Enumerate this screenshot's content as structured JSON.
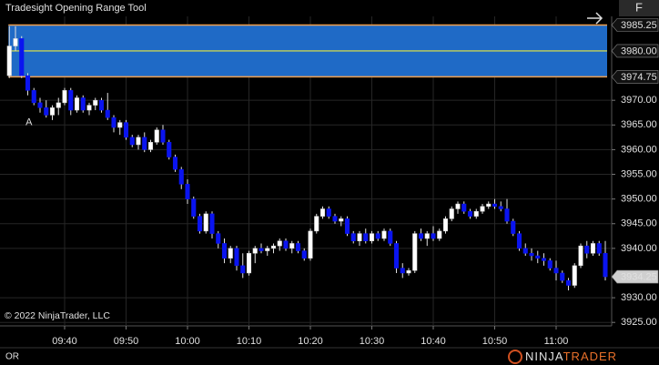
{
  "chart_data": {
    "type": "candlestick",
    "title": "Tradesight Opening Range Tool",
    "copyright": "© 2022 NinjaTrader, LLC",
    "annotation": "A",
    "panel_label": "OR",
    "button_label": "F",
    "logo_left": "NINJA",
    "logo_right": "TRADER",
    "up_color": "#ffffff",
    "down_color": "#0a14f0",
    "x": [
      "09:31",
      "09:32",
      "09:33",
      "09:34",
      "09:35",
      "09:36",
      "09:37",
      "09:38",
      "09:39",
      "09:40",
      "09:41",
      "09:42",
      "09:43",
      "09:44",
      "09:45",
      "09:46",
      "09:47",
      "09:48",
      "09:49",
      "09:50",
      "09:51",
      "09:52",
      "09:53",
      "09:54",
      "09:55",
      "09:56",
      "09:57",
      "09:58",
      "09:59",
      "10:00",
      "10:01",
      "10:02",
      "10:03",
      "10:04",
      "10:05",
      "10:06",
      "10:07",
      "10:08",
      "10:09",
      "10:10",
      "10:11",
      "10:12",
      "10:13",
      "10:14",
      "10:15",
      "10:16",
      "10:17",
      "10:18",
      "10:19",
      "10:20",
      "10:21",
      "10:22",
      "10:23",
      "10:24",
      "10:25",
      "10:26",
      "10:27",
      "10:28",
      "10:29",
      "10:30",
      "10:31",
      "10:32",
      "10:33",
      "10:34",
      "10:35",
      "10:36",
      "10:37",
      "10:38",
      "10:39",
      "10:40",
      "10:41",
      "10:42",
      "10:43",
      "10:44",
      "10:45",
      "10:46",
      "10:47",
      "10:48",
      "10:49",
      "10:50",
      "10:51",
      "10:52",
      "10:53",
      "10:54",
      "10:55",
      "10:56",
      "10:57",
      "10:58",
      "10:59",
      "11:00",
      "11:01",
      "11:02",
      "11:03",
      "11:04",
      "11:05",
      "11:06",
      "11:07",
      "11:08"
    ],
    "open": [
      3975,
      3981,
      3982.5,
      3975,
      3972,
      3969.5,
      3968.5,
      3967,
      3968.5,
      3969.5,
      3972,
      3968,
      3970.5,
      3968,
      3969,
      3970,
      3968,
      3966.5,
      3964.5,
      3965.5,
      3962.5,
      3961,
      3962.5,
      3960,
      3961.5,
      3964,
      3961.5,
      3958.5,
      3956,
      3953,
      3950,
      3946.5,
      3943.5,
      3947,
      3943,
      3941,
      3938,
      3940,
      3936.5,
      3935,
      3939,
      3940,
      3939.5,
      3940,
      3940.5,
      3941.5,
      3940,
      3941,
      3939.5,
      3938,
      3943.5,
      3946.5,
      3948,
      3946.5,
      3945.5,
      3946,
      3943,
      3941.5,
      3943,
      3941.5,
      3943,
      3942,
      3943.5,
      3941,
      3936,
      3935,
      3935.5,
      3943,
      3942,
      3943,
      3942,
      3943.5,
      3946,
      3948,
      3949,
      3947.5,
      3946.5,
      3947.5,
      3948.5,
      3949,
      3948.5,
      3948,
      3945.5,
      3943,
      3940,
      3939,
      3938.5,
      3938,
      3937.5,
      3936,
      3935,
      3933.5,
      3932.5,
      3936.5,
      3940.5,
      3939,
      3941,
      3939
    ],
    "high": [
      3985,
      3985,
      3983,
      3975.5,
      3972.5,
      3970.5,
      3970,
      3969,
      3970.5,
      3972.5,
      3972.5,
      3971,
      3971,
      3969.5,
      3970.5,
      3970.5,
      3971.5,
      3967,
      3966,
      3966,
      3963,
      3963,
      3963.5,
      3962,
      3964.5,
      3965,
      3962,
      3959,
      3956.5,
      3954,
      3950.5,
      3947,
      3947.5,
      3947.5,
      3943.5,
      3942,
      3940.5,
      3940.5,
      3939,
      3939.5,
      3940.5,
      3941,
      3940.5,
      3941,
      3942,
      3942,
      3941.5,
      3941.5,
      3940,
      3944,
      3947,
      3948.5,
      3948.5,
      3947,
      3946.5,
      3946.5,
      3943.5,
      3943.5,
      3944,
      3943.5,
      3943.5,
      3944,
      3944,
      3941.5,
      3937,
      3936,
      3943.5,
      3944,
      3943.5,
      3944.5,
      3944,
      3946.5,
      3948.5,
      3949.5,
      3949.5,
      3948,
      3948,
      3949,
      3949.5,
      3950,
      3949.5,
      3950,
      3946,
      3943.5,
      3941,
      3940,
      3939.5,
      3939,
      3938,
      3937.5,
      3935.5,
      3934,
      3937,
      3941,
      3941.5,
      3941.5,
      3941.5,
      3941.5
    ],
    "low": [
      3974.5,
      3980,
      3974.5,
      3971,
      3969,
      3967.5,
      3966.5,
      3966,
      3967,
      3969,
      3967,
      3967.5,
      3967.5,
      3967,
      3968,
      3967.5,
      3966,
      3963.5,
      3963,
      3962,
      3960.5,
      3960,
      3959.5,
      3959.5,
      3961,
      3961,
      3958,
      3955.5,
      3952,
      3949,
      3946,
      3943,
      3943,
      3942,
      3940,
      3937,
      3937,
      3935.5,
      3934,
      3934.5,
      3937,
      3939,
      3938.5,
      3939,
      3939.5,
      3939.5,
      3939,
      3939,
      3937.5,
      3937.5,
      3943,
      3946,
      3946,
      3945,
      3944.5,
      3942.5,
      3941,
      3940.5,
      3941,
      3941,
      3941.5,
      3941.5,
      3940.5,
      3935,
      3934,
      3934.5,
      3935,
      3941.5,
      3940.5,
      3941.5,
      3941.5,
      3943,
      3945.5,
      3947,
      3947,
      3946,
      3946,
      3947,
      3948,
      3948,
      3947.5,
      3945,
      3942.5,
      3939.5,
      3938.5,
      3937.5,
      3937,
      3936.5,
      3935.5,
      3933.5,
      3933,
      3931.5,
      3932,
      3936,
      3938,
      3938.5,
      3938.5,
      3933.5
    ],
    "close": [
      3981,
      3982.5,
      3975,
      3972,
      3969.5,
      3968.5,
      3967,
      3968.5,
      3969.5,
      3972,
      3968,
      3970.5,
      3968,
      3969,
      3970,
      3968,
      3966.5,
      3964.5,
      3965.5,
      3962.5,
      3961,
      3962.5,
      3960,
      3961.5,
      3964,
      3961.5,
      3958.5,
      3956,
      3953,
      3950,
      3946.5,
      3943.5,
      3947,
      3943,
      3941,
      3938,
      3940,
      3936.5,
      3935,
      3939,
      3940,
      3939.5,
      3940,
      3940.5,
      3941.5,
      3940,
      3941,
      3939.5,
      3938,
      3943.5,
      3946.5,
      3948,
      3946.5,
      3945.5,
      3946,
      3943,
      3941.5,
      3943,
      3941.5,
      3943,
      3942,
      3943.5,
      3941,
      3936,
      3935,
      3935.5,
      3943,
      3942,
      3943,
      3942,
      3943.5,
      3946,
      3948,
      3949,
      3947.5,
      3946.5,
      3947.5,
      3948.5,
      3949,
      3948.5,
      3948,
      3945.5,
      3943,
      3940,
      3939,
      3938.5,
      3938,
      3937.5,
      3936,
      3935,
      3933.5,
      3932.5,
      3936.5,
      3940.5,
      3939,
      3941,
      3939,
      3934.25
    ],
    "last_price": 3934.25,
    "opening_range": {
      "high": 3985.25,
      "mid": {
        "value": 3980,
        "label": "3980.00"
      },
      "low": 3974.75,
      "fill": "#1f6ac6",
      "edge_color": "#f0a050",
      "mid_color": "#e8e840"
    },
    "ylim": [
      3924.3,
      3987
    ],
    "yticks": [
      {
        "value": 3925,
        "label": "3925.00"
      },
      {
        "value": 3930,
        "label": "3930.00"
      },
      {
        "value": 3940,
        "label": "3940.00"
      },
      {
        "value": 3945,
        "label": "3945.00"
      },
      {
        "value": 3950,
        "label": "3950.00"
      },
      {
        "value": 3955,
        "label": "3955.00"
      },
      {
        "value": 3960,
        "label": "3960.00"
      },
      {
        "value": 3965,
        "label": "3965.00"
      },
      {
        "value": 3970,
        "label": "3970.00"
      }
    ],
    "xticks": [
      "09:40",
      "09:50",
      "10:00",
      "10:10",
      "10:20",
      "10:30",
      "10:40",
      "10:50",
      "11:00"
    ],
    "grid": true
  }
}
